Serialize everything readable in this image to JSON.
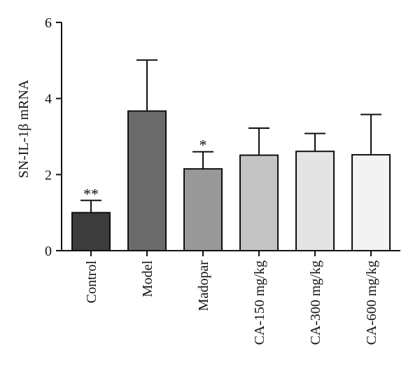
{
  "chart_data": {
    "type": "bar",
    "title": "",
    "xlabel": "",
    "ylabel": "SN-IL-1β mRNA",
    "ylim": [
      0,
      6
    ],
    "yticks": [
      0,
      2,
      4,
      6
    ],
    "grid": false,
    "categories": [
      "Control",
      "Model",
      "Madopar",
      "CA-150 mg/kg",
      "CA-300 mg/kg",
      "CA-600 mg/kg"
    ],
    "values": [
      1.0,
      3.67,
      2.15,
      2.51,
      2.61,
      2.52
    ],
    "error_upper": [
      1.32,
      5.01,
      2.6,
      3.22,
      3.08,
      3.58
    ],
    "annotations": [
      "**",
      "",
      "*",
      "",
      "",
      ""
    ],
    "bar_colors": [
      "#3c3c3c",
      "#6b6b6b",
      "#999999",
      "#c4c4c4",
      "#e4e4e4",
      "#f3f3f3"
    ]
  }
}
